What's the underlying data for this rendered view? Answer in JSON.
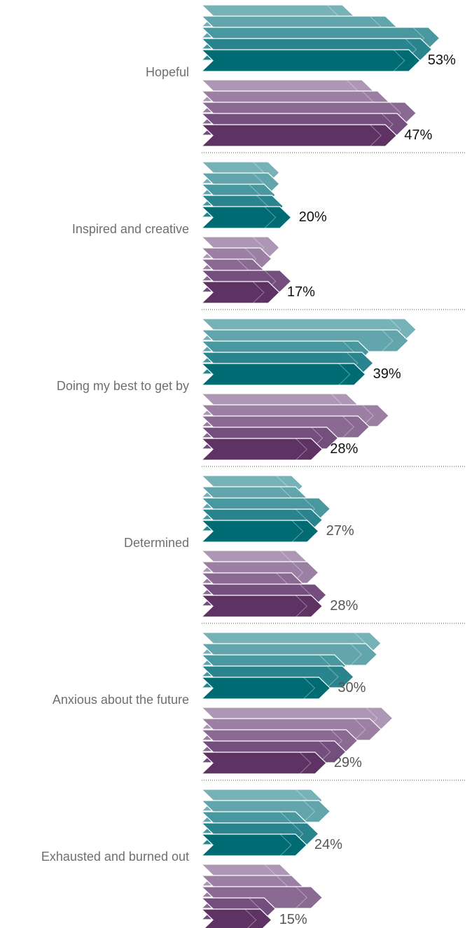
{
  "chart_data": {
    "type": "bar",
    "orientation": "horizontal",
    "legend": "none",
    "grid": false,
    "categories": [
      "Hopeful",
      "Inspired and creative",
      "Doing my best to get by",
      "Determined",
      "Anxious about the future",
      "Exhausted and burned out"
    ],
    "groups": [
      {
        "category": "Hopeful",
        "teal": {
          "values": [
            36,
            47,
            58,
            56,
            53
          ],
          "label": "53%"
        },
        "purple": {
          "values": [
            41,
            45,
            52,
            50,
            47
          ],
          "label": "47%"
        }
      },
      {
        "category": "Inspired and creative",
        "teal": {
          "values": [
            17,
            17,
            16,
            18,
            20
          ],
          "label": "20%"
        },
        "purple": {
          "values": [
            17,
            15,
            13,
            20,
            17
          ],
          "label": "17%"
        }
      },
      {
        "category": "Doing my best to get by",
        "teal": {
          "values": [
            52,
            50,
            40,
            41,
            39
          ],
          "label": "39%"
        },
        "purple": {
          "values": [
            37,
            45,
            40,
            32,
            28
          ],
          "label": "28%"
        }
      },
      {
        "category": "Determined",
        "teal": {
          "values": [
            23,
            24,
            30,
            28,
            27
          ],
          "label": "27%"
        },
        "purple": {
          "values": [
            24,
            27,
            23,
            29,
            28
          ],
          "label": "28%"
        }
      },
      {
        "category": "Anxious about the future",
        "teal": {
          "values": [
            43,
            42,
            34,
            36,
            30
          ],
          "label": "30%"
        },
        "purple": {
          "values": [
            46,
            43,
            37,
            34,
            29
          ],
          "label": "29%"
        }
      },
      {
        "category": "Exhausted and burned out",
        "teal": {
          "values": [
            28,
            30,
            24,
            27,
            24
          ],
          "label": "24%"
        },
        "purple": {
          "values": [
            20,
            23,
            28,
            16,
            15
          ],
          "label": "15%"
        }
      }
    ],
    "colors": {
      "teal": [
        "#78b2b9",
        "#62a5ad",
        "#4a989f",
        "#2a848d",
        "#006b73"
      ],
      "purple": [
        "#ad97b4",
        "#9b80a4",
        "#8a6a92",
        "#744f7e",
        "#5e3262"
      ],
      "label_emphasis": "#111111",
      "label_muted": "#555555"
    },
    "label_emphasis_categories": 3
  }
}
